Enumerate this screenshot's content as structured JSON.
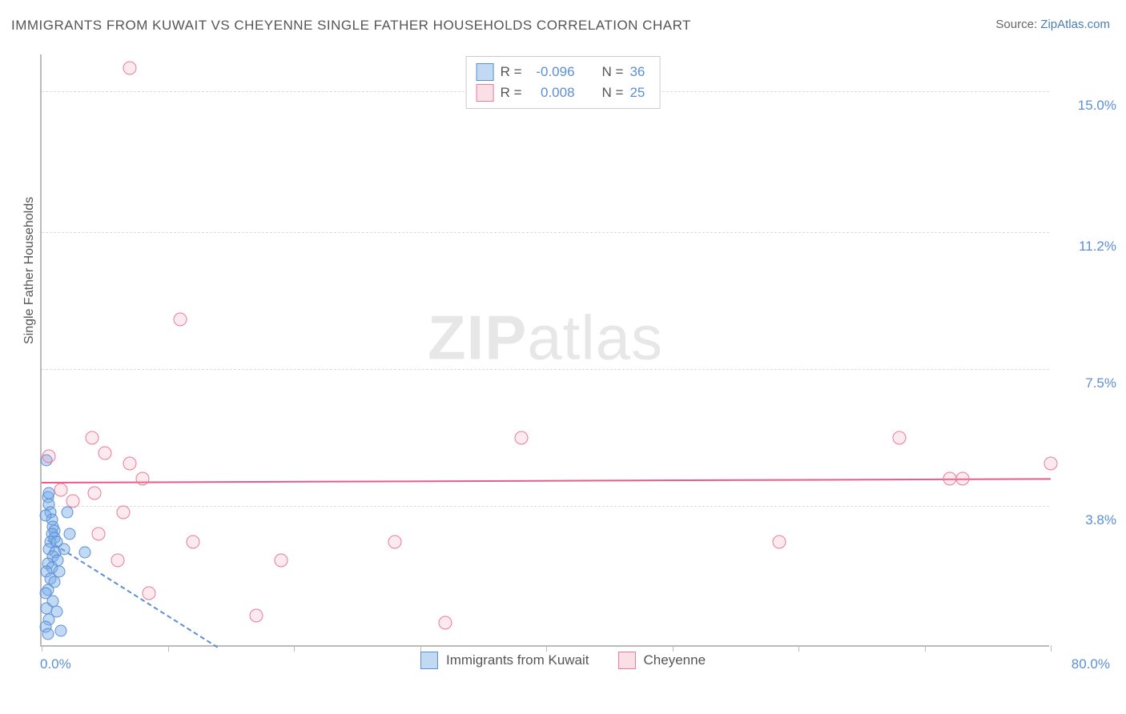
{
  "title": "IMMIGRANTS FROM KUWAIT VS CHEYENNE SINGLE FATHER HOUSEHOLDS CORRELATION CHART",
  "source": {
    "prefix": "Source:",
    "name": "ZipAtlas.com"
  },
  "y_axis_label": "Single Father Households",
  "watermark": {
    "bold": "ZIP",
    "light": "atlas"
  },
  "chart": {
    "type": "scatter",
    "xlim": [
      0,
      80
    ],
    "ylim": [
      0,
      16
    ],
    "x_min_label": "0.0%",
    "x_max_label": "80.0%",
    "x_ticks": [
      0,
      10,
      20,
      30,
      40,
      50,
      60,
      70,
      80
    ],
    "y_gridlines": [
      {
        "value": 3.8,
        "label": "3.8%"
      },
      {
        "value": 7.5,
        "label": "7.5%"
      },
      {
        "value": 11.2,
        "label": "11.2%"
      },
      {
        "value": 15.0,
        "label": "15.0%"
      }
    ],
    "background_color": "#ffffff",
    "grid_color": "#dddddd",
    "axis_color": "#bbbbbb",
    "tick_label_color": "#5b8fd6",
    "series": [
      {
        "name": "Immigrants from Kuwait",
        "R": "-0.096",
        "N": "36",
        "marker_fill": "rgba(120,170,230,0.45)",
        "marker_stroke": "#5b8fd6",
        "marker_size": 15,
        "trendline": {
          "style": "dashed",
          "color": "#5b8fd6",
          "x1": 0.5,
          "y1": 2.9,
          "x2": 14.0,
          "y2": 0.0
        },
        "points": [
          {
            "x": 0.4,
            "y": 5.0
          },
          {
            "x": 0.5,
            "y": 4.0
          },
          {
            "x": 0.6,
            "y": 3.8
          },
          {
            "x": 0.7,
            "y": 3.6
          },
          {
            "x": 0.8,
            "y": 3.4
          },
          {
            "x": 0.9,
            "y": 3.2
          },
          {
            "x": 1.0,
            "y": 3.1
          },
          {
            "x": 0.8,
            "y": 3.0
          },
          {
            "x": 1.0,
            "y": 2.9
          },
          {
            "x": 0.7,
            "y": 2.8
          },
          {
            "x": 1.2,
            "y": 2.8
          },
          {
            "x": 0.6,
            "y": 2.6
          },
          {
            "x": 1.1,
            "y": 2.5
          },
          {
            "x": 0.9,
            "y": 2.4
          },
          {
            "x": 1.3,
            "y": 2.3
          },
          {
            "x": 0.5,
            "y": 2.2
          },
          {
            "x": 0.8,
            "y": 2.1
          },
          {
            "x": 0.4,
            "y": 2.0
          },
          {
            "x": 1.4,
            "y": 2.0
          },
          {
            "x": 0.7,
            "y": 1.8
          },
          {
            "x": 1.0,
            "y": 1.7
          },
          {
            "x": 0.5,
            "y": 1.5
          },
          {
            "x": 0.3,
            "y": 1.4
          },
          {
            "x": 0.9,
            "y": 1.2
          },
          {
            "x": 0.4,
            "y": 1.0
          },
          {
            "x": 1.2,
            "y": 0.9
          },
          {
            "x": 0.6,
            "y": 0.7
          },
          {
            "x": 0.3,
            "y": 0.5
          },
          {
            "x": 1.5,
            "y": 0.4
          },
          {
            "x": 0.6,
            "y": 4.1
          },
          {
            "x": 2.0,
            "y": 3.6
          },
          {
            "x": 2.2,
            "y": 3.0
          },
          {
            "x": 1.8,
            "y": 2.6
          },
          {
            "x": 0.5,
            "y": 0.3
          },
          {
            "x": 3.4,
            "y": 2.5
          },
          {
            "x": 0.3,
            "y": 3.5
          }
        ]
      },
      {
        "name": "Cheyenne",
        "R": "0.008",
        "N": "25",
        "marker_fill": "rgba(240,150,175,0.2)",
        "marker_stroke": "#e77c9b",
        "marker_size": 17,
        "trendline": {
          "style": "solid",
          "color": "#ea5a8a",
          "x1": 0.0,
          "y1": 4.45,
          "x2": 80.0,
          "y2": 4.55
        },
        "points": [
          {
            "x": 7.0,
            "y": 15.6
          },
          {
            "x": 11.0,
            "y": 8.8
          },
          {
            "x": 4.0,
            "y": 5.6
          },
          {
            "x": 5.0,
            "y": 5.2
          },
          {
            "x": 0.6,
            "y": 5.1
          },
          {
            "x": 38.0,
            "y": 5.6
          },
          {
            "x": 68.0,
            "y": 5.6
          },
          {
            "x": 80.0,
            "y": 4.9
          },
          {
            "x": 7.0,
            "y": 4.9
          },
          {
            "x": 8.0,
            "y": 4.5
          },
          {
            "x": 72.0,
            "y": 4.5
          },
          {
            "x": 73.0,
            "y": 4.5
          },
          {
            "x": 1.5,
            "y": 4.2
          },
          {
            "x": 4.2,
            "y": 4.1
          },
          {
            "x": 6.5,
            "y": 3.6
          },
          {
            "x": 12.0,
            "y": 2.8
          },
          {
            "x": 2.5,
            "y": 3.9
          },
          {
            "x": 4.5,
            "y": 3.0
          },
          {
            "x": 6.0,
            "y": 2.3
          },
          {
            "x": 28.0,
            "y": 2.8
          },
          {
            "x": 17.0,
            "y": 0.8
          },
          {
            "x": 32.0,
            "y": 0.6
          },
          {
            "x": 8.5,
            "y": 1.4
          },
          {
            "x": 58.5,
            "y": 2.8
          },
          {
            "x": 19.0,
            "y": 2.3
          }
        ]
      }
    ]
  },
  "legend_top": {
    "r_label": "R =",
    "n_label": "N ="
  },
  "legend_bottom": {
    "items": [
      "Immigrants from Kuwait",
      "Cheyenne"
    ]
  }
}
